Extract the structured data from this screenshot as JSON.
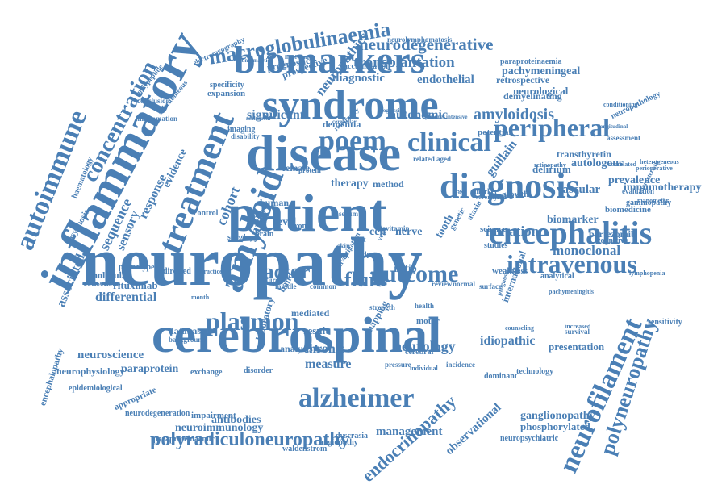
{
  "style": {
    "word_color": "#4a7fb5",
    "background": "#ffffff"
  },
  "words": [
    "neuropathy",
    "cerebrospinal",
    "patient",
    "disease",
    "syndrome",
    "biomarkers",
    "inflammatory",
    "amyloid",
    "treatment",
    "diagnosis",
    "encephalitis",
    "clinical",
    "peripheral",
    "poem",
    "autoimmune",
    "concentration",
    "alzheimer",
    "neurofilament",
    "polyneuropathy",
    "intravenous",
    "macroglobulinaemia",
    "outcome",
    "plasmon",
    "neurodegenerative",
    "transplantation",
    "amyloidosis",
    "polyradiculoneuropathy",
    "endocrinopathy",
    "factor",
    "fluid",
    "significant",
    "autonomic",
    "neurology",
    "chronic",
    "measure",
    "management",
    "antibodies",
    "neuroimmunology",
    "mutation",
    "biomarker",
    "monoclonal",
    "autologous",
    "prevalence",
    "immunotherapy",
    "vascular",
    "delirium",
    "diagnostic",
    "endothelial",
    "pachymeningeal",
    "neurological",
    "retrospective",
    "demyelinating",
    "neuropathies",
    "neurolymphomatosis",
    "paraproteinaemia",
    "neuroscience",
    "paraprotein",
    "neurophysiology",
    "idiopathic",
    "ganglionopathy",
    "phosphorylated",
    "neuropsychiatric",
    "observational",
    "presentation",
    "international",
    "weakness",
    "studies",
    "science",
    "associated",
    "differential",
    "rituximab",
    "sequence",
    "response",
    "evidence",
    "sensory",
    "cohort",
    "study",
    "therapy",
    "method",
    "dementia",
    "potential",
    "growth",
    "transthyretin",
    "bortezomib",
    "biomedicine",
    "gammopathy",
    "guillain",
    "barré",
    "level",
    "cell",
    "nerve",
    "tooth",
    "ratio",
    "human",
    "female",
    "expansion",
    "specificity",
    "prognostic",
    "prospective",
    "neurodegeneration",
    "impairment",
    "waldenstrom",
    "angiopathy",
    "dyscrasia",
    "paraproteinaemic",
    "laboratory",
    "database",
    "background",
    "exchange",
    "disorder",
    "analysis",
    "mapping",
    "cerebral",
    "dominant",
    "technology",
    "phenotype",
    "molecular",
    "psychosis",
    "directed",
    "consensus",
    "control",
    "surgery",
    "brain",
    "imaging",
    "disability",
    "assessment",
    "evaluation",
    "manometer",
    "cognitive",
    "lymphopenia",
    "sensitivity",
    "incidence",
    "pressure",
    "individual",
    "epidemiological",
    "appropriate",
    "encephalopathy",
    "haematology",
    "polypeptide",
    "conclusion",
    "subcutaneous",
    "inflammation",
    "electromyography",
    "abnormalities",
    "involvement",
    "neuropathology",
    "characteristic",
    "perioperative",
    "heterogeneous",
    "correlated",
    "longitudinal",
    "multifocal",
    "cerebellar",
    "cytokines",
    "intensive",
    "progression",
    "respiratory",
    "marker",
    "severity",
    "exome",
    "serum",
    "light",
    "skin",
    "risk",
    "vegf",
    "cidp",
    "aged",
    "related",
    "protein",
    "genetic",
    "ataxia",
    "band",
    "result",
    "mediated",
    "motor",
    "strength",
    "health",
    "month",
    "practice",
    "feature",
    "middle",
    "common",
    "review",
    "normal",
    "surface",
    "survival",
    "counseling",
    "increased",
    "analytical",
    "vitamin",
    "accumulation",
    "conditioning",
    "pachymeningitis",
    "retinopathy",
    "prognosis",
    "investigation",
    "legal",
    "autonomic dysfunction"
  ]
}
